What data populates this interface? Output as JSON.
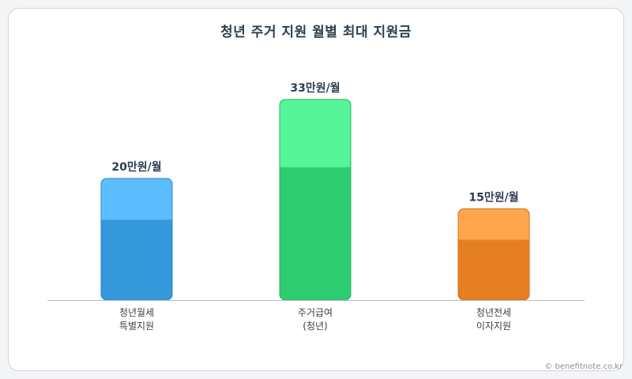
{
  "title": "청년 주거 지원 월별 최대 지원금",
  "credit": "© benefitnote.co.kr",
  "chart_data": {
    "type": "bar",
    "title": "청년 주거 지원 월별 최대 지원금",
    "xlabel": "",
    "ylabel": "",
    "unit": "만원/월",
    "ylim": [
      0,
      35
    ],
    "grid": false,
    "categories": [
      [
        "청년월세",
        "특별지원"
      ],
      [
        "주거급여",
        "(청년)"
      ],
      [
        "청년전세",
        "이자지원"
      ]
    ],
    "values": [
      20,
      33,
      15
    ],
    "data_labels": [
      "20만원/월",
      "33만원/월",
      "15만원/월"
    ],
    "colors": [
      {
        "base": "#3498db",
        "top": "#5dbeff",
        "edge": "#2f86c4"
      },
      {
        "base": "#2ecc71",
        "top": "#56f59a",
        "edge": "#27b562"
      },
      {
        "base": "#e67e22",
        "top": "#ffa64d",
        "edge": "#cf6f1a"
      }
    ]
  }
}
